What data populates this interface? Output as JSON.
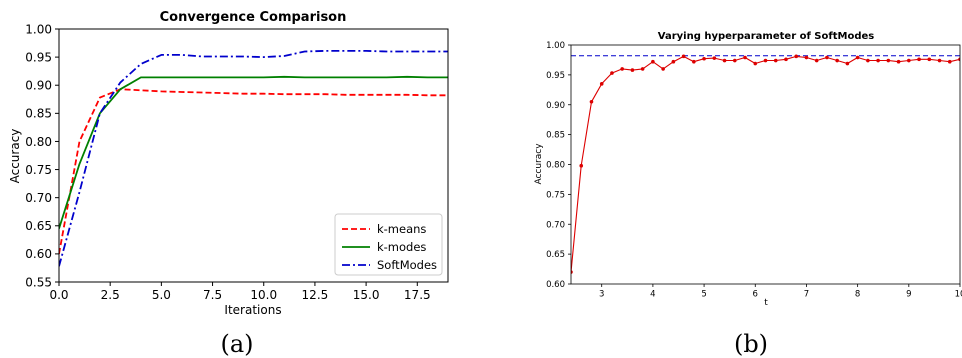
{
  "chart_data": [
    {
      "type": "line",
      "title": "Convergence Comparison",
      "xlabel": "Iterations",
      "ylabel": "Accuracy",
      "xlim": [
        0,
        19
      ],
      "ylim": [
        0.55,
        1.0
      ],
      "xticks": [
        0.0,
        2.5,
        5.0,
        7.5,
        10.0,
        12.5,
        15.0,
        17.5
      ],
      "xtick_labels": [
        "0.0",
        "2.5",
        "5.0",
        "7.5",
        "10.0",
        "12.5",
        "15.0",
        "17.5"
      ],
      "yticks": [
        0.55,
        0.6,
        0.65,
        0.7,
        0.75,
        0.8,
        0.85,
        0.9,
        0.95,
        1.0
      ],
      "ytick_labels": [
        "0.55",
        "0.60",
        "0.65",
        "0.70",
        "0.75",
        "0.80",
        "0.85",
        "0.90",
        "0.95",
        "1.00"
      ],
      "grid": false,
      "legend_position": "bottom-right",
      "caption": "(a)",
      "series": [
        {
          "name": "k-means",
          "color": "#ff0000",
          "style": "dashed",
          "x": [
            0,
            1,
            2,
            3,
            4,
            5,
            6,
            7,
            8,
            9,
            10,
            11,
            12,
            13,
            14,
            15,
            16,
            17,
            18,
            19
          ],
          "y": [
            0.6,
            0.8,
            0.878,
            0.893,
            0.891,
            0.889,
            0.888,
            0.887,
            0.886,
            0.885,
            0.885,
            0.884,
            0.884,
            0.884,
            0.883,
            0.883,
            0.883,
            0.883,
            0.882,
            0.882
          ]
        },
        {
          "name": "k-modes",
          "color": "#008000",
          "style": "solid",
          "x": [
            0,
            1,
            2,
            3,
            4,
            5,
            6,
            7,
            8,
            9,
            10,
            11,
            12,
            13,
            14,
            15,
            16,
            17,
            18,
            19
          ],
          "y": [
            0.645,
            0.76,
            0.85,
            0.893,
            0.914,
            0.914,
            0.914,
            0.914,
            0.914,
            0.914,
            0.914,
            0.915,
            0.914,
            0.914,
            0.914,
            0.914,
            0.914,
            0.915,
            0.914,
            0.914
          ]
        },
        {
          "name": "SoftModes",
          "color": "#0000cc",
          "style": "dashdot",
          "x": [
            0,
            1,
            2,
            3,
            4,
            5,
            6,
            7,
            8,
            9,
            10,
            11,
            12,
            13,
            14,
            15,
            16,
            17,
            18,
            19
          ],
          "y": [
            0.578,
            0.71,
            0.85,
            0.905,
            0.938,
            0.954,
            0.954,
            0.951,
            0.951,
            0.951,
            0.95,
            0.952,
            0.96,
            0.961,
            0.961,
            0.961,
            0.96,
            0.96,
            0.96,
            0.96
          ]
        }
      ]
    },
    {
      "type": "line",
      "title": "Varying hyperparameter of SoftModes",
      "xlabel": "t",
      "ylabel": "Accuracy",
      "xlim": [
        2.4,
        10
      ],
      "ylim": [
        0.6,
        1.0
      ],
      "xticks": [
        3,
        4,
        5,
        6,
        7,
        8,
        9,
        10
      ],
      "xtick_labels": [
        "3",
        "4",
        "5",
        "6",
        "7",
        "8",
        "9",
        "10"
      ],
      "yticks": [
        0.6,
        0.65,
        0.7,
        0.75,
        0.8,
        0.85,
        0.9,
        0.95,
        1.0
      ],
      "ytick_labels": [
        "0.60",
        "0.65",
        "0.70",
        "0.75",
        "0.80",
        "0.85",
        "0.90",
        "0.95",
        "1.00"
      ],
      "grid": false,
      "caption": "(b)",
      "reference_line": {
        "y": 0.982,
        "color": "#0000cc",
        "style": "dashed"
      },
      "series": [
        {
          "color": "#dd0000",
          "style": "solid",
          "markers": true,
          "x": [
            2.4,
            2.6,
            2.8,
            3.0,
            3.2,
            3.4,
            3.6,
            3.8,
            4.0,
            4.2,
            4.4,
            4.6,
            4.8,
            5.0,
            5.2,
            5.4,
            5.6,
            5.8,
            6.0,
            6.2,
            6.4,
            6.6,
            6.8,
            7.0,
            7.2,
            7.4,
            7.6,
            7.8,
            8.0,
            8.2,
            8.4,
            8.6,
            8.8,
            9.0,
            9.2,
            9.4,
            9.6,
            9.8,
            10.0
          ],
          "y": [
            0.62,
            0.798,
            0.905,
            0.935,
            0.953,
            0.96,
            0.958,
            0.96,
            0.972,
            0.96,
            0.972,
            0.981,
            0.972,
            0.977,
            0.978,
            0.974,
            0.974,
            0.979,
            0.969,
            0.974,
            0.974,
            0.976,
            0.981,
            0.979,
            0.974,
            0.979,
            0.974,
            0.969,
            0.979,
            0.974,
            0.974,
            0.974,
            0.972,
            0.974,
            0.976,
            0.976,
            0.974,
            0.972,
            0.976
          ]
        }
      ]
    }
  ]
}
